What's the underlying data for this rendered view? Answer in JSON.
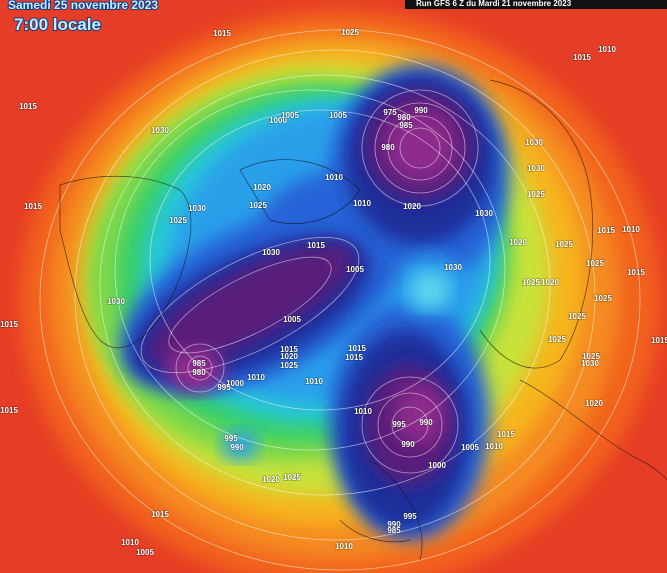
{
  "header": {
    "date": "Samedi 25 novembre 2023",
    "time": "7:00 locale",
    "run": "Run GFS 6 Z du Mardi 21 novembre 2023"
  },
  "pressure_labels": [
    "1015",
    "1030",
    "1000",
    "1005",
    "1005",
    "975",
    "980",
    "990",
    "985",
    "980",
    "1030",
    "1030",
    "1025",
    "1020",
    "1025",
    "1030",
    "1025",
    "1015",
    "1010",
    "1010",
    "1020",
    "1030",
    "1020",
    "1025",
    "1010",
    "1015",
    "1025",
    "1015",
    "1030",
    "1015",
    "1005",
    "1030",
    "1025",
    "1020",
    "1025",
    "1030",
    "1005",
    "1025",
    "1015",
    "1015",
    "1025",
    "1015",
    "1015",
    "1020",
    "1015",
    "985",
    "980",
    "1025",
    "1025",
    "1030",
    "1010",
    "1010",
    "1000",
    "995",
    "1015",
    "1020",
    "1010",
    "995",
    "990",
    "990",
    "1015",
    "1005",
    "1010",
    "1000",
    "995",
    "990",
    "1020",
    "1025",
    "1015",
    "1010",
    "1005",
    "1010",
    "995",
    "990",
    "985",
    "1015",
    "1015",
    "1025",
    "1010"
  ]
}
